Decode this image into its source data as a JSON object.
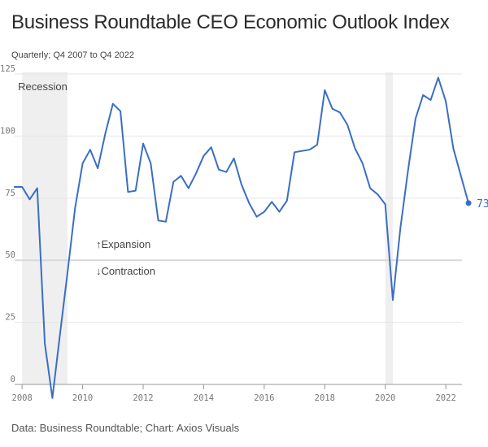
{
  "header": {
    "title": "Business Roundtable CEO Economic Outlook Index",
    "subtitle": "Quarterly; Q4 2007 to Q4 2022"
  },
  "footer": {
    "source": "Data: Business Roundtable; Chart: Axios Visuals"
  },
  "colors": {
    "line": "#3a6ec4",
    "recession": "#efefef",
    "grid": "#e6e6e6",
    "zero": "#999999",
    "fifty": "#d9d9d9"
  },
  "chart_data": {
    "type": "line",
    "title": "Business Roundtable CEO Economic Outlook Index",
    "xlabel": "",
    "ylabel": "",
    "xlim": [
      2007.875,
      2023.125
    ],
    "ylim": [
      0,
      125
    ],
    "yticks": [
      0,
      25,
      50,
      75,
      100,
      125
    ],
    "xticks": [
      2008,
      2010,
      2012,
      2014,
      2016,
      2018,
      2020,
      2022
    ],
    "recessions": [
      [
        2008.0,
        2009.5
      ],
      [
        2020.0,
        2020.25
      ]
    ],
    "recession_label": "Recession",
    "threshold": 50,
    "expansion_label": "↑Expansion",
    "contraction_label": "↓Contraction",
    "end_label": "73",
    "series": [
      {
        "name": "CEO Economic Outlook Index",
        "x": [
          2007.75,
          2008.0,
          2008.25,
          2008.5,
          2008.75,
          2009.0,
          2009.25,
          2009.5,
          2009.75,
          2010.0,
          2010.25,
          2010.5,
          2010.75,
          2011.0,
          2011.25,
          2011.5,
          2011.75,
          2012.0,
          2012.25,
          2012.5,
          2012.75,
          2013.0,
          2013.25,
          2013.5,
          2013.75,
          2014.0,
          2014.25,
          2014.5,
          2014.75,
          2015.0,
          2015.25,
          2015.5,
          2015.75,
          2016.0,
          2016.25,
          2016.5,
          2016.75,
          2017.0,
          2017.25,
          2017.5,
          2017.75,
          2018.0,
          2018.25,
          2018.5,
          2018.75,
          2019.0,
          2019.25,
          2019.5,
          2019.75,
          2020.0,
          2020.25,
          2020.5,
          2020.75,
          2021.0,
          2021.25,
          2021.5,
          2021.75,
          2022.0,
          2022.25,
          2022.5,
          2022.75
        ],
        "values": [
          79.5,
          79.5,
          74.5,
          79,
          16.5,
          -5.5,
          20,
          45,
          71,
          89,
          94.5,
          87,
          101,
          113,
          110,
          77.5,
          78,
          97,
          89,
          66,
          65.5,
          81.5,
          84,
          79,
          85,
          92,
          95.5,
          86.5,
          85.5,
          91,
          80.5,
          73,
          67.5,
          69.5,
          73.5,
          69.5,
          74,
          93.5,
          94,
          94.5,
          96.5,
          118.5,
          111,
          109.5,
          104.5,
          95,
          89,
          79,
          76.5,
          72.5,
          34,
          63,
          86,
          107,
          116.5,
          114.5,
          123.5,
          114,
          95,
          84,
          73
        ]
      }
    ]
  }
}
